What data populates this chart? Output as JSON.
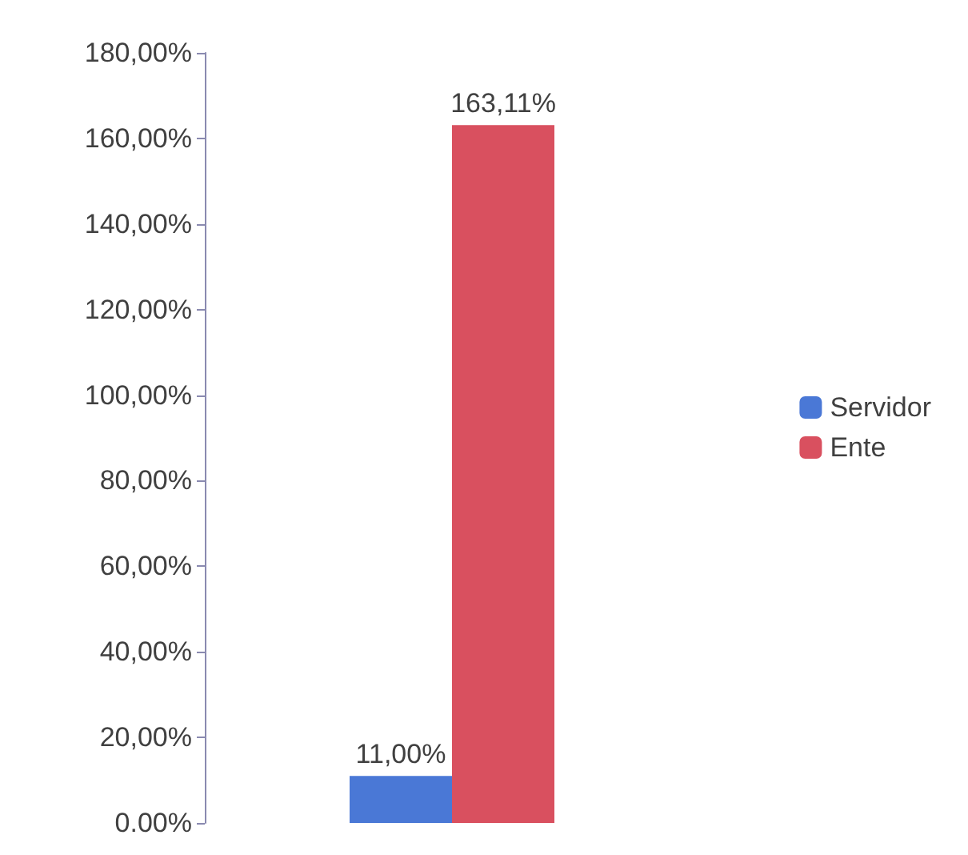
{
  "chart_data": {
    "type": "bar",
    "categories": [
      null
    ],
    "series": [
      {
        "name": "Servidor",
        "color": "#4a78d6",
        "values": [
          11
        ],
        "value_labels": [
          "11,00%"
        ]
      },
      {
        "name": "Ente",
        "color": "#d9505f",
        "values": [
          163.11
        ],
        "value_labels": [
          "163,11%"
        ]
      }
    ],
    "ylim": [
      0,
      180
    ],
    "yticks": [
      {
        "value": 0,
        "label": "0.00%"
      },
      {
        "value": 20,
        "label": "20,00%"
      },
      {
        "value": 40,
        "label": "40,00%"
      },
      {
        "value": 60,
        "label": "60,00%"
      },
      {
        "value": 80,
        "label": "80,00%"
      },
      {
        "value": 100,
        "label": "100,00%"
      },
      {
        "value": 120,
        "label": "120,00%"
      },
      {
        "value": 140,
        "label": "140,00%"
      },
      {
        "value": 160,
        "label": "160,00%"
      },
      {
        "value": 180,
        "label": "180,00%"
      }
    ],
    "grid": false,
    "legend": "right"
  }
}
